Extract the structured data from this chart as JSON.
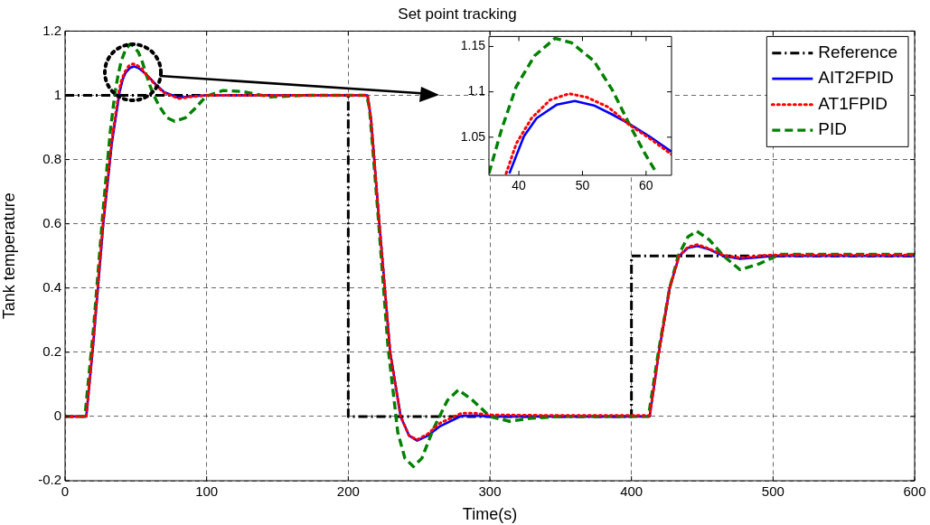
{
  "chart_data": [
    {
      "type": "line",
      "title": "Set point tracking",
      "xlabel": "Time(s)",
      "ylabel": "Tank temperature",
      "xlim": [
        0,
        600
      ],
      "xticks": [
        0,
        100,
        200,
        300,
        400,
        500,
        600
      ],
      "ylim": [
        -0.2,
        1.2
      ],
      "yticks": [
        -0.2,
        0,
        0.2,
        0.4,
        0.6,
        0.8,
        1,
        1.2
      ],
      "grid": true,
      "legend": "top right",
      "marker": "none",
      "series": [
        {
          "name": "Reference",
          "color": "#000000",
          "line_style": "dashdot",
          "x": [
            0,
            200,
            200,
            400,
            400,
            600
          ],
          "values": [
            1,
            1,
            0,
            0,
            0.5,
            0.5
          ]
        },
        {
          "name": "AIT2FPID",
          "color": "#0000ff",
          "line_style": "solid",
          "x": [
            0,
            15,
            20,
            27,
            33,
            38.5,
            40.8,
            42.8,
            46,
            48.8,
            51.8,
            54.7,
            57.3,
            60.5,
            64,
            70,
            80,
            90,
            100,
            150,
            213.6,
            216,
            222,
            229.6,
            237,
            243,
            248.7,
            256,
            265,
            280,
            290,
            300,
            350,
            412.9,
            419.4,
            427,
            433.7,
            440,
            446.7,
            455,
            465,
            476.7,
            490,
            500,
            600
          ],
          "values": [
            0,
            0,
            0.23,
            0.6,
            0.85,
            1.01,
            1.051,
            1.071,
            1.086,
            1.09,
            1.085,
            1.075,
            1.065,
            1.051,
            1.034,
            1.01,
            0.993,
            0.997,
            1,
            1,
            1,
            0.93,
            0.6,
            0.2,
            0,
            -0.06,
            -0.075,
            -0.06,
            -0.03,
            0.002,
            0.003,
            0,
            0,
            0,
            0.2,
            0.4,
            0.5,
            0.525,
            0.531,
            0.52,
            0.5,
            0.491,
            0.496,
            0.5,
            0.5
          ]
        },
        {
          "name": "AT1FPID",
          "color": "#ff0000",
          "line_style": "dotted",
          "x": [
            0,
            15,
            20,
            27,
            33,
            38,
            39.6,
            42,
            44.9,
            47.9,
            50.7,
            54.1,
            57.3,
            60.5,
            64,
            70,
            80,
            90,
            100,
            150,
            213.6,
            216,
            222,
            229.6,
            237,
            243,
            248.7,
            256,
            265,
            280,
            290,
            300,
            350,
            412.9,
            419.4,
            427,
            433.7,
            440,
            446.7,
            455,
            465,
            476.7,
            490,
            500,
            600
          ],
          "values": [
            0,
            0,
            0.24,
            0.61,
            0.86,
            1.01,
            1.043,
            1.071,
            1.091,
            1.098,
            1.094,
            1.083,
            1.064,
            1.049,
            1.031,
            1.008,
            0.99,
            0.996,
            1,
            1,
            1,
            0.93,
            0.6,
            0.2,
            0,
            -0.06,
            -0.072,
            -0.055,
            -0.02,
            0.01,
            0.01,
            0.005,
            0.003,
            0.003,
            0.2,
            0.4,
            0.5,
            0.528,
            0.535,
            0.522,
            0.502,
            0.494,
            0.5,
            0.503,
            0.503
          ]
        },
        {
          "name": "PID",
          "color": "#008000",
          "line_style": "dashed",
          "x": [
            0,
            14,
            20,
            27,
            32,
            35.3,
            37.3,
            39.6,
            42.5,
            45.7,
            48.3,
            51.8,
            54.7,
            57.6,
            59.9,
            61.7,
            66,
            72,
            77.4,
            85,
            92,
            99.6,
            111.5,
            125,
            145,
            170,
            213,
            215,
            221,
            228,
            235,
            240,
            246,
            252,
            260,
            270,
            277.8,
            288,
            300,
            313.8,
            330,
            350,
            412,
            419,
            427,
            433,
            440,
            446.2,
            455,
            465,
            476.7,
            490,
            505,
            520,
            600
          ],
          "values": [
            0,
            0,
            0.27,
            0.65,
            0.89,
            1.01,
            1.059,
            1.106,
            1.14,
            1.159,
            1.154,
            1.134,
            1.102,
            1.061,
            1.031,
            1.01,
            0.97,
            0.93,
            0.919,
            0.93,
            0.96,
            0.997,
            1.015,
            1.012,
            0.995,
            1,
            1,
            0.96,
            0.63,
            0.22,
            -0.05,
            -0.13,
            -0.156,
            -0.13,
            -0.04,
            0.05,
            0.083,
            0.05,
            0,
            -0.015,
            -0.005,
            0,
            0,
            0.2,
            0.4,
            0.5,
            0.56,
            0.577,
            0.55,
            0.5,
            0.457,
            0.475,
            0.505,
            0.505,
            0.505
          ]
        }
      ]
    },
    {
      "type": "line",
      "xlim": [
        35.3,
        64
      ],
      "xticks": [
        40,
        50,
        60
      ],
      "ylim": [
        1.008,
        1.161
      ],
      "yticks": [
        1.05,
        1.1,
        1.15
      ],
      "grid": false,
      "legend": false,
      "marker": "none",
      "series": [
        {
          "color": "#0000ff",
          "line_style": "solid",
          "x": [
            38.5,
            40.8,
            42.8,
            46,
            48.8,
            51.8,
            54.7,
            57.3,
            60.5,
            64
          ],
          "values": [
            1.01,
            1.051,
            1.071,
            1.086,
            1.09,
            1.085,
            1.075,
            1.065,
            1.051,
            1.034
          ]
        },
        {
          "color": "#ff0000",
          "line_style": "dotted",
          "x": [
            38,
            39.6,
            42,
            44.9,
            47.9,
            50.7,
            54.1,
            57.3,
            60.5,
            64
          ],
          "values": [
            1.01,
            1.043,
            1.071,
            1.091,
            1.098,
            1.094,
            1.083,
            1.064,
            1.049,
            1.031
          ]
        },
        {
          "color": "#008000",
          "line_style": "dashed",
          "x": [
            35.3,
            37.3,
            39.6,
            42.5,
            45.7,
            48.3,
            51.8,
            54.7,
            57.6,
            59.9,
            61.7
          ],
          "values": [
            1.01,
            1.059,
            1.106,
            1.14,
            1.159,
            1.154,
            1.134,
            1.102,
            1.061,
            1.031,
            1.01
          ]
        }
      ]
    }
  ]
}
